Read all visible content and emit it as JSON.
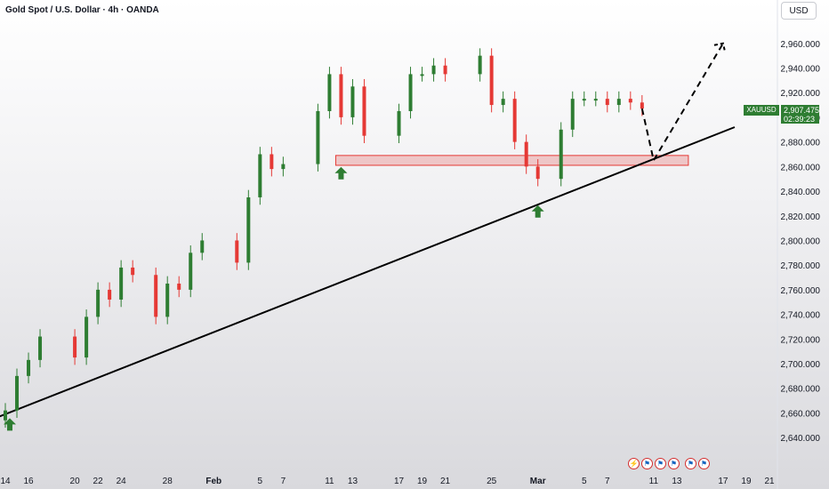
{
  "header": {
    "title": "Gold Spot / U.S. Dollar · 4h · OANDA"
  },
  "toolbar": {
    "currency": "USD"
  },
  "price_label": {
    "symbol": "XAUUSD",
    "price": "2,907.475",
    "countdown": "02:39:23"
  },
  "events": [
    {
      "icon": "lightning-icon"
    },
    {
      "icon": "us-flag-icon"
    },
    {
      "icon": "us-flag-icon"
    },
    {
      "icon": "us-flag-icon"
    },
    {
      "icon": "us-flag-icon"
    },
    {
      "icon": "us-flag-icon"
    }
  ],
  "chart_data": {
    "type": "line",
    "series": [
      {
        "values": [
          {
            "x": "Jan 14",
            "y": 2662
          },
          {
            "x": "Jan 15",
            "y": 2690
          },
          {
            "x": "Jan 16",
            "y": 2703
          },
          {
            "x": "Jan 17",
            "y": 2722
          },
          {
            "x": "Jan 20",
            "y": 2705
          },
          {
            "x": "Jan 21",
            "y": 2738
          },
          {
            "x": "Jan 22",
            "y": 2760
          },
          {
            "x": "Jan 23",
            "y": 2752
          },
          {
            "x": "Jan 24",
            "y": 2778
          },
          {
            "x": "Jan 25",
            "y": 2772
          },
          {
            "x": "Jan 27",
            "y": 2738
          },
          {
            "x": "Jan 28",
            "y": 2765
          },
          {
            "x": "Jan 29",
            "y": 2760
          },
          {
            "x": "Jan 30",
            "y": 2790
          },
          {
            "x": "Jan 31",
            "y": 2800
          },
          {
            "x": "Feb 3",
            "y": 2782
          },
          {
            "x": "Feb 4",
            "y": 2835
          },
          {
            "x": "Feb 5",
            "y": 2870
          },
          {
            "x": "Feb 6",
            "y": 2858
          },
          {
            "x": "Feb 7",
            "y": 2862
          },
          {
            "x": "Feb 10",
            "y": 2905
          },
          {
            "x": "Feb 11",
            "y": 2935
          },
          {
            "x": "Feb 12",
            "y": 2900
          },
          {
            "x": "Feb 13",
            "y": 2925
          },
          {
            "x": "Feb 14",
            "y": 2885
          },
          {
            "x": "Feb 17",
            "y": 2905
          },
          {
            "x": "Feb 18",
            "y": 2935
          },
          {
            "x": "Feb 19",
            "y": 2935
          },
          {
            "x": "Feb 20",
            "y": 2942
          },
          {
            "x": "Feb 21",
            "y": 2935
          },
          {
            "x": "Feb 24",
            "y": 2950
          },
          {
            "x": "Feb 25",
            "y": 2910
          },
          {
            "x": "Feb 26",
            "y": 2915
          },
          {
            "x": "Feb 27",
            "y": 2880
          },
          {
            "x": "Feb 28",
            "y": 2860
          },
          {
            "x": "Mar 1",
            "y": 2850
          },
          {
            "x": "Mar 3",
            "y": 2890
          },
          {
            "x": "Mar 4",
            "y": 2915
          },
          {
            "x": "Mar 5",
            "y": 2915
          },
          {
            "x": "Mar 6",
            "y": 2915
          },
          {
            "x": "Mar 7",
            "y": 2910
          },
          {
            "x": "Mar 8",
            "y": 2915
          },
          {
            "x": "Mar 9",
            "y": 2912
          },
          {
            "x": "Mar 10",
            "y": 2907
          }
        ]
      }
    ],
    "projection": [
      {
        "x": "Mar 10",
        "y": 2907
      },
      {
        "x": "Mar 11",
        "y": 2865
      },
      {
        "x": "Mar 17",
        "y": 2960
      }
    ],
    "trendline": [
      {
        "x": "Jan 13",
        "y": 2657
      },
      {
        "x": "Mar 18",
        "y": 2892
      }
    ],
    "support_zone": {
      "x_start": "Feb 12",
      "x_end": "Mar 14",
      "y_low": 2861,
      "y_high": 2869
    },
    "markers": [
      {
        "x": "Jan 13",
        "y": 2660,
        "type": "up-arrow"
      },
      {
        "x": "Feb 12",
        "y": 2864,
        "type": "up-arrow"
      },
      {
        "x": "Mar 1",
        "y": 2833,
        "type": "up-arrow"
      }
    ],
    "x_ticks": [
      "14",
      "16",
      "20",
      "22",
      "24",
      "28",
      "Feb",
      "5",
      "7",
      "11",
      "13",
      "17",
      "19",
      "21",
      "25",
      "Mar",
      "5",
      "7",
      "11",
      "13",
      "17",
      "19",
      "21"
    ],
    "y_ticks": [
      "2,960.000",
      "2,940.000",
      "2,920.000",
      "2,900.000",
      "2,880.000",
      "2,860.000",
      "2,840.000",
      "2,820.000",
      "2,800.000",
      "2,780.000",
      "2,760.000",
      "2,740.000",
      "2,720.000",
      "2,700.000",
      "2,680.000",
      "2,660.000",
      "2,640.000"
    ],
    "ylim": [
      2630,
      2975
    ],
    "colors": {
      "up": "#2e7d32",
      "down": "#e53935",
      "trend": "#000000",
      "zone": "#e57373"
    }
  }
}
